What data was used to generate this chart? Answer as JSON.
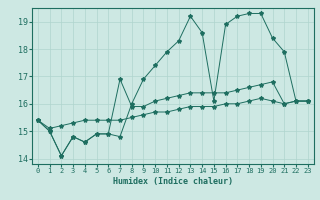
{
  "xlabel": "Humidex (Indice chaleur)",
  "bg_color": "#cde8e3",
  "grid_color": "#b0d5ce",
  "line_color": "#1e6e60",
  "xlim": [
    -0.5,
    23.5
  ],
  "ylim": [
    13.8,
    19.5
  ],
  "xticks": [
    0,
    1,
    2,
    3,
    4,
    5,
    6,
    7,
    8,
    9,
    10,
    11,
    12,
    13,
    14,
    15,
    16,
    17,
    18,
    19,
    20,
    21,
    22,
    23
  ],
  "yticks": [
    14,
    15,
    16,
    17,
    18,
    19
  ],
  "line1_x": [
    0,
    1,
    2,
    3,
    4,
    5,
    6,
    7,
    8,
    9,
    10,
    11,
    12,
    13,
    14,
    15,
    16,
    17,
    18,
    19,
    20,
    21,
    22,
    23
  ],
  "line1_y": [
    15.4,
    15.0,
    14.1,
    14.8,
    14.6,
    14.9,
    14.9,
    14.8,
    16.0,
    16.9,
    17.4,
    17.9,
    18.3,
    19.2,
    18.6,
    16.1,
    18.9,
    19.2,
    19.3,
    19.3,
    18.4,
    17.9,
    16.1,
    16.1
  ],
  "line2_x": [
    0,
    1,
    2,
    3,
    4,
    5,
    6,
    7,
    8,
    9,
    10,
    11,
    12,
    13,
    14,
    15,
    16,
    17,
    18,
    19,
    20,
    21,
    22,
    23
  ],
  "line2_y": [
    15.4,
    15.0,
    14.1,
    14.8,
    14.6,
    14.9,
    14.9,
    16.9,
    15.9,
    15.9,
    16.1,
    16.2,
    16.3,
    16.4,
    16.4,
    16.4,
    16.4,
    16.5,
    16.6,
    16.7,
    16.8,
    16.0,
    16.1,
    16.1
  ],
  "line3_x": [
    0,
    1,
    2,
    3,
    4,
    5,
    6,
    7,
    8,
    9,
    10,
    11,
    12,
    13,
    14,
    15,
    16,
    17,
    18,
    19,
    20,
    21,
    22,
    23
  ],
  "line3_y": [
    15.4,
    15.1,
    15.2,
    15.3,
    15.4,
    15.4,
    15.4,
    15.4,
    15.5,
    15.6,
    15.7,
    15.7,
    15.8,
    15.9,
    15.9,
    15.9,
    16.0,
    16.0,
    16.1,
    16.2,
    16.1,
    16.0,
    16.1,
    16.1
  ]
}
